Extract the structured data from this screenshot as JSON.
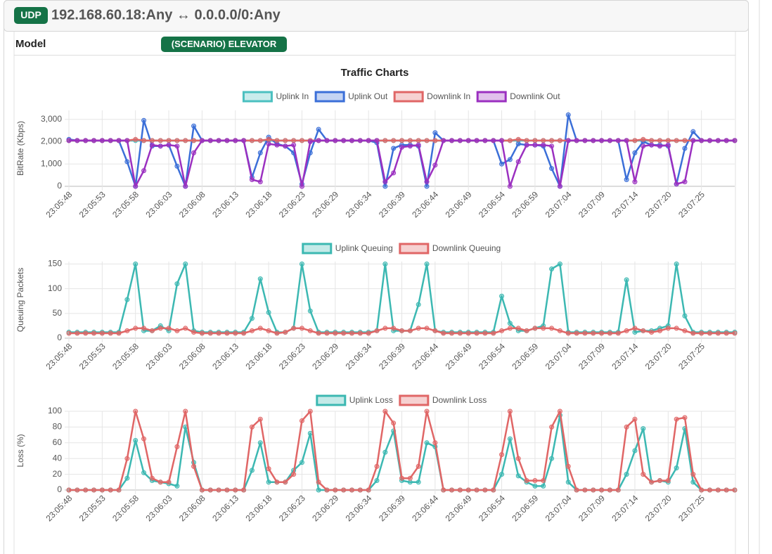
{
  "header": {
    "badge": "UDP",
    "title": "192.168.60.18:Any ↔ 0.0.0.0/0:Any"
  },
  "model": {
    "label": "Model",
    "value": "(SCENARIO) ELEVATOR"
  },
  "section_title": "Traffic Charts",
  "chart_data": [
    {
      "type": "line",
      "ylabel": "BitRate (Kbps)",
      "legend": "top",
      "grid": true,
      "categories": [
        "23:05:48",
        null,
        null,
        null,
        "23:05:53",
        null,
        null,
        null,
        "23:05:58",
        null,
        null,
        null,
        "23:06:03",
        null,
        null,
        null,
        "23:06:08",
        null,
        null,
        null,
        "23:06:13",
        null,
        null,
        null,
        "23:06:18",
        null,
        null,
        null,
        "23:06:23",
        null,
        null,
        null,
        "23:06:29",
        null,
        null,
        null,
        "23:06:34",
        null,
        null,
        null,
        "23:06:39",
        null,
        null,
        null,
        "23:06:44",
        null,
        null,
        null,
        "23:06:49",
        null,
        null,
        null,
        "23:06:54",
        null,
        null,
        null,
        "23:06:59",
        null,
        null,
        null,
        "23:07:04",
        null,
        null,
        null,
        "23:07:09",
        null,
        null,
        null,
        "23:07:14",
        null,
        null,
        null,
        "23:07:20",
        null,
        null,
        null,
        "23:07:25",
        null,
        null,
        null,
        null
      ],
      "ylim": [
        0,
        3400
      ],
      "yticks": [
        0,
        {
          "value": 1000,
          "label": "1,000"
        },
        {
          "value": 2000,
          "label": "2,000"
        },
        {
          "value": 3000,
          "label": "3,000"
        }
      ],
      "series": [
        {
          "name": "Uplink In",
          "color": "#4bc0c0",
          "values": [
            2050,
            2050,
            2050,
            2050,
            2050,
            2050,
            2050,
            2050,
            2050,
            2050,
            2050,
            2050,
            2050,
            2050,
            2050,
            2050,
            2050,
            2050,
            2050,
            2050,
            2050,
            2050,
            2050,
            2050,
            2050,
            2050,
            2050,
            2050,
            2050,
            2050,
            2050,
            2050,
            2050,
            2050,
            2050,
            2050,
            2050,
            2050,
            2050,
            2050,
            2050,
            2050,
            2050,
            2050,
            2050,
            2050,
            2050,
            2050,
            2050,
            2050,
            2050,
            2050,
            2050,
            2050,
            2050,
            2050,
            2050,
            2050,
            2050,
            2050,
            2050,
            2050,
            2050,
            2050,
            2050,
            2050,
            2050,
            2050,
            2050,
            2050,
            2050,
            2050,
            2050,
            2050,
            2050,
            2050,
            2050,
            2050,
            2050,
            2050,
            2050
          ]
        },
        {
          "name": "Uplink Out",
          "color": "#3b6fd8",
          "values": [
            2100,
            2050,
            2050,
            2050,
            2050,
            2050,
            2050,
            1100,
            0,
            2950,
            1800,
            1800,
            1850,
            900,
            0,
            2700,
            2050,
            2050,
            2050,
            2050,
            2050,
            2050,
            400,
            1500,
            2200,
            1900,
            1800,
            1500,
            100,
            1500,
            2550,
            2050,
            2050,
            2050,
            2050,
            2050,
            2050,
            1950,
            0,
            1700,
            1850,
            1850,
            1800,
            0,
            2400,
            2050,
            2050,
            2050,
            2050,
            2050,
            2050,
            2050,
            1000,
            1200,
            1900,
            1850,
            1850,
            1800,
            800,
            0,
            3200,
            2050,
            2050,
            2050,
            2050,
            2050,
            2050,
            300,
            1500,
            2000,
            1850,
            1850,
            1800,
            100,
            1700,
            2450,
            2050,
            2050,
            2050,
            2050,
            2050
          ]
        },
        {
          "name": "Downlink In",
          "color": "#e06666",
          "values": [
            2050,
            2050,
            2050,
            2050,
            2050,
            2050,
            2050,
            2050,
            2100,
            2050,
            2050,
            2050,
            2050,
            2050,
            2050,
            2050,
            2050,
            2050,
            2050,
            2050,
            2050,
            2050,
            2050,
            2050,
            2100,
            2050,
            2050,
            2050,
            2050,
            2050,
            2050,
            2050,
            2050,
            2050,
            2050,
            2050,
            2050,
            2050,
            2050,
            2050,
            2050,
            2050,
            2050,
            2050,
            2050,
            2050,
            2050,
            2050,
            2050,
            2050,
            2050,
            2050,
            2050,
            2050,
            2100,
            2050,
            2050,
            2050,
            2050,
            2050,
            2050,
            2050,
            2050,
            2050,
            2050,
            2050,
            2050,
            2050,
            2050,
            2100,
            2050,
            2050,
            2050,
            2050,
            2050,
            2050,
            2050,
            2050,
            2050,
            2050,
            2050
          ]
        },
        {
          "name": "Downlink Out",
          "color": "#9b30c0",
          "values": [
            2050,
            2050,
            2050,
            2050,
            2050,
            2050,
            2050,
            2050,
            0,
            700,
            1850,
            1800,
            1850,
            1800,
            0,
            1500,
            2050,
            2050,
            2050,
            2050,
            2050,
            2050,
            300,
            200,
            1900,
            1850,
            1800,
            1850,
            0,
            2000,
            2050,
            2050,
            2050,
            2050,
            2050,
            2050,
            2050,
            2050,
            200,
            600,
            1750,
            1800,
            1850,
            200,
            950,
            2050,
            2050,
            2050,
            2050,
            2050,
            2050,
            2050,
            2050,
            0,
            1100,
            1850,
            1850,
            1850,
            1800,
            0,
            2050,
            2050,
            2050,
            2050,
            2050,
            2050,
            2050,
            2050,
            200,
            1800,
            1850,
            1800,
            1850,
            100,
            200,
            2050,
            2050,
            2050,
            2050,
            2050,
            2050
          ]
        }
      ]
    },
    {
      "type": "line",
      "ylabel": "Queuing Packets",
      "legend": "top",
      "grid": true,
      "categories": [
        "23:05:48",
        null,
        null,
        null,
        "23:05:53",
        null,
        null,
        null,
        "23:05:58",
        null,
        null,
        null,
        "23:06:03",
        null,
        null,
        null,
        "23:06:08",
        null,
        null,
        null,
        "23:06:13",
        null,
        null,
        null,
        "23:06:18",
        null,
        null,
        null,
        "23:06:23",
        null,
        null,
        null,
        "23:06:29",
        null,
        null,
        null,
        "23:06:34",
        null,
        null,
        null,
        "23:06:39",
        null,
        null,
        null,
        "23:06:44",
        null,
        null,
        null,
        "23:06:49",
        null,
        null,
        null,
        "23:06:54",
        null,
        null,
        null,
        "23:06:59",
        null,
        null,
        null,
        "23:07:04",
        null,
        null,
        null,
        "23:07:09",
        null,
        null,
        null,
        "23:07:14",
        null,
        null,
        null,
        "23:07:20",
        null,
        null,
        null,
        "23:07:25",
        null,
        null,
        null,
        null
      ],
      "ylim": [
        0,
        155
      ],
      "yticks": [
        0,
        50,
        100,
        150
      ],
      "series": [
        {
          "name": "Uplink Queuing",
          "color": "#3cb8b2",
          "values": [
            12,
            12,
            12,
            12,
            12,
            12,
            12,
            78,
            150,
            15,
            15,
            25,
            15,
            110,
            150,
            15,
            12,
            12,
            12,
            12,
            12,
            12,
            40,
            120,
            52,
            12,
            12,
            20,
            150,
            55,
            12,
            12,
            12,
            12,
            12,
            12,
            12,
            15,
            150,
            15,
            15,
            15,
            68,
            150,
            15,
            12,
            12,
            12,
            12,
            12,
            12,
            12,
            85,
            30,
            15,
            15,
            20,
            25,
            140,
            150,
            12,
            12,
            12,
            12,
            12,
            12,
            12,
            118,
            12,
            15,
            15,
            20,
            25,
            150,
            45,
            12,
            12,
            12,
            12,
            12,
            12
          ]
        },
        {
          "name": "Downlink Queuing",
          "color": "#e06666",
          "values": [
            10,
            10,
            10,
            10,
            10,
            10,
            10,
            15,
            20,
            20,
            15,
            20,
            20,
            15,
            20,
            12,
            10,
            10,
            10,
            10,
            10,
            10,
            15,
            20,
            15,
            10,
            12,
            20,
            20,
            15,
            10,
            10,
            10,
            10,
            10,
            10,
            10,
            15,
            20,
            20,
            15,
            15,
            20,
            20,
            15,
            10,
            10,
            10,
            10,
            10,
            10,
            10,
            15,
            20,
            20,
            15,
            20,
            20,
            20,
            15,
            10,
            10,
            10,
            10,
            10,
            10,
            10,
            15,
            20,
            15,
            12,
            15,
            20,
            20,
            15,
            10,
            10,
            10,
            10,
            10,
            10
          ]
        }
      ]
    },
    {
      "type": "line",
      "ylabel": "Loss (%)",
      "legend": "top",
      "grid": true,
      "categories": [
        "23:05:48",
        null,
        null,
        null,
        "23:05:53",
        null,
        null,
        null,
        "23:05:58",
        null,
        null,
        null,
        "23:06:03",
        null,
        null,
        null,
        "23:06:08",
        null,
        null,
        null,
        "23:06:13",
        null,
        null,
        null,
        "23:06:18",
        null,
        null,
        null,
        "23:06:23",
        null,
        null,
        null,
        "23:06:29",
        null,
        null,
        null,
        "23:06:34",
        null,
        null,
        null,
        "23:06:39",
        null,
        null,
        null,
        "23:06:44",
        null,
        null,
        null,
        "23:06:49",
        null,
        null,
        null,
        "23:06:54",
        null,
        null,
        null,
        "23:06:59",
        null,
        null,
        null,
        "23:07:04",
        null,
        null,
        null,
        "23:07:09",
        null,
        null,
        null,
        "23:07:14",
        null,
        null,
        null,
        "23:07:20",
        null,
        null,
        null,
        "23:07:25",
        null,
        null,
        null,
        null
      ],
      "ylim": [
        0,
        100
      ],
      "yticks": [
        0,
        20,
        40,
        60,
        80,
        100
      ],
      "series": [
        {
          "name": "Uplink Loss",
          "color": "#3cb8b2",
          "values": [
            0,
            0,
            0,
            0,
            0,
            0,
            0,
            15,
            63,
            22,
            12,
            10,
            8,
            5,
            80,
            35,
            0,
            0,
            0,
            0,
            0,
            0,
            25,
            60,
            10,
            10,
            10,
            25,
            35,
            72,
            0,
            0,
            0,
            0,
            0,
            0,
            0,
            12,
            48,
            75,
            12,
            10,
            10,
            60,
            55,
            0,
            0,
            0,
            0,
            0,
            0,
            0,
            20,
            65,
            18,
            10,
            5,
            5,
            40,
            95,
            10,
            0,
            0,
            0,
            0,
            0,
            0,
            20,
            50,
            78,
            10,
            12,
            10,
            28,
            78,
            10,
            0,
            0,
            0,
            0,
            0
          ]
        },
        {
          "name": "Downlink Loss",
          "color": "#e06666",
          "values": [
            0,
            0,
            0,
            0,
            0,
            0,
            0,
            40,
            100,
            65,
            15,
            10,
            10,
            55,
            100,
            30,
            0,
            0,
            0,
            0,
            0,
            0,
            80,
            90,
            27,
            10,
            10,
            20,
            88,
            100,
            10,
            0,
            0,
            0,
            0,
            0,
            0,
            30,
            100,
            85,
            15,
            15,
            30,
            100,
            60,
            0,
            0,
            0,
            0,
            0,
            0,
            0,
            45,
            100,
            40,
            12,
            12,
            12,
            80,
            100,
            30,
            0,
            0,
            0,
            0,
            0,
            0,
            80,
            90,
            20,
            10,
            12,
            12,
            90,
            92,
            20,
            0,
            0,
            0,
            0,
            0
          ]
        }
      ]
    }
  ]
}
